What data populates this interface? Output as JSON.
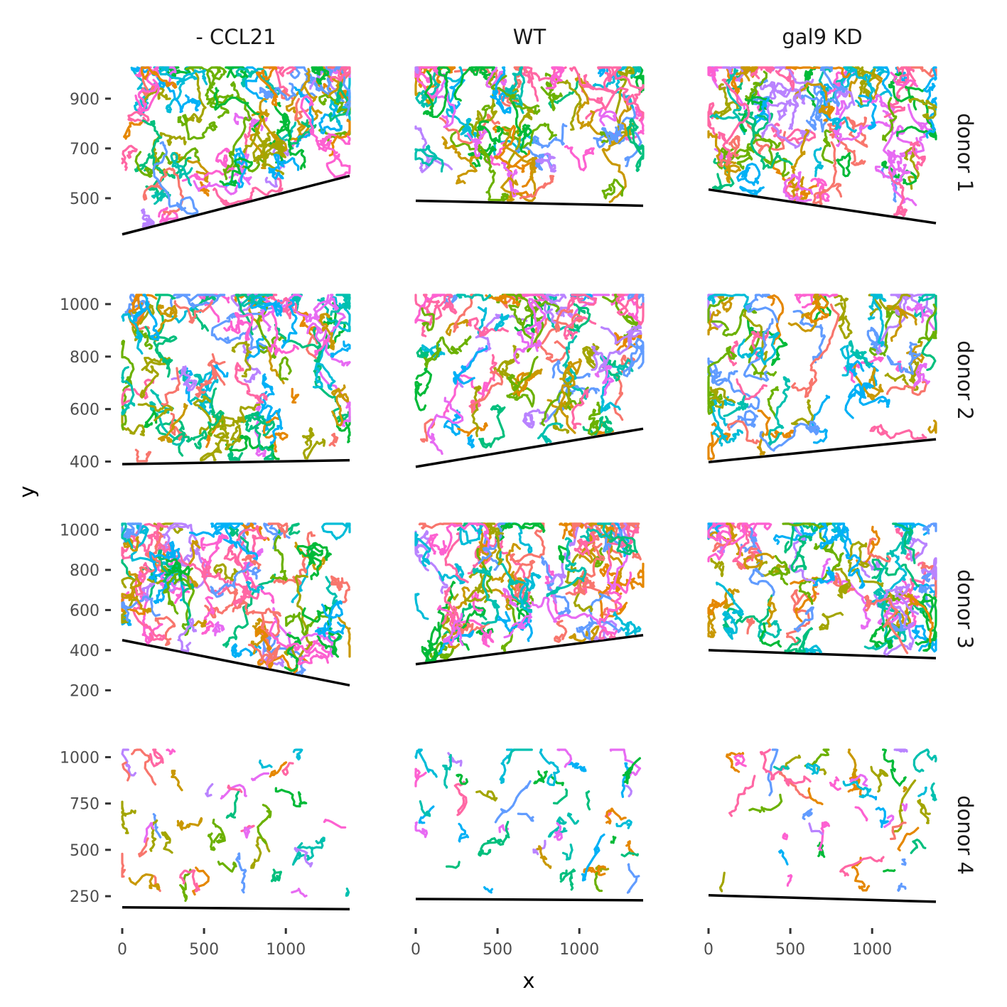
{
  "chart_data": {
    "type": "line",
    "xlabel": "x",
    "ylabel": "y",
    "xlim": [
      0,
      1390
    ],
    "x_ticks": [
      0,
      500,
      1000
    ],
    "columns": [
      "- CCL21",
      "WT",
      "gal9 KD"
    ],
    "rows": [
      "donor 1",
      "donor 2",
      "donor 3",
      "donor 4"
    ],
    "row_ylim": [
      [
        340,
        1025
      ],
      [
        385,
        1035
      ],
      [
        180,
        1030
      ],
      [
        120,
        1040
      ]
    ],
    "row_ticks": [
      [
        500,
        700,
        900
      ],
      [
        400,
        600,
        800,
        1000
      ],
      [
        200,
        400,
        600,
        800,
        1000
      ],
      [
        250,
        500,
        750,
        1000
      ]
    ],
    "boundaries": [
      [
        [
          [
            0,
            355
          ],
          [
            1390,
            590
          ]
        ],
        [
          [
            0,
            490
          ],
          [
            1390,
            470
          ]
        ],
        [
          [
            0,
            535
          ],
          [
            1390,
            400
          ]
        ]
      ],
      [
        [
          [
            0,
            390
          ],
          [
            1390,
            405
          ]
        ],
        [
          [
            0,
            380
          ],
          [
            1390,
            525
          ]
        ],
        [
          [
            0,
            398
          ],
          [
            1390,
            485
          ]
        ]
      ],
      [
        [
          [
            0,
            450
          ],
          [
            1390,
            225
          ]
        ],
        [
          [
            0,
            330
          ],
          [
            1390,
            475
          ]
        ],
        [
          [
            0,
            400
          ],
          [
            1390,
            360
          ]
        ]
      ],
      [
        [
          [
            0,
            190
          ],
          [
            1390,
            180
          ]
        ],
        [
          [
            0,
            235
          ],
          [
            1390,
            228
          ]
        ],
        [
          [
            0,
            255
          ],
          [
            1390,
            220
          ]
        ]
      ]
    ],
    "track_density": [
      [
        90,
        75,
        95
      ],
      [
        95,
        80,
        70
      ],
      [
        95,
        95,
        85
      ],
      [
        45,
        50,
        50
      ]
    ],
    "legend": "none",
    "grid": false,
    "track_colors": [
      "#F8766D",
      "#E58700",
      "#C99800",
      "#A3A500",
      "#6BB100",
      "#00BA38",
      "#00BF7D",
      "#00C0AF",
      "#00BCD8",
      "#00B0F6",
      "#619CFF",
      "#B983FF",
      "#E76BF3",
      "#FD61D1",
      "#FF67A4"
    ],
    "boundary_color": "#000000"
  }
}
